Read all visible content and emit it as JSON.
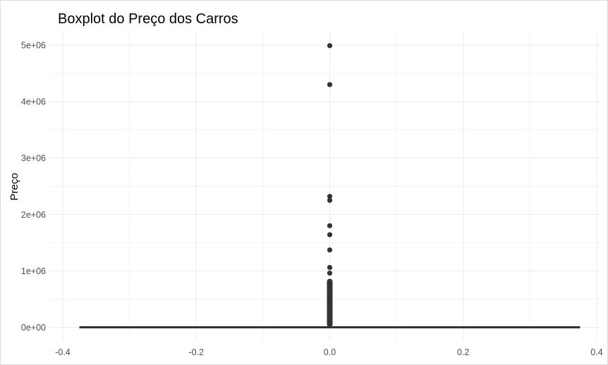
{
  "chart_data": {
    "type": "boxplot",
    "title": "Boxplot do Preço dos Carros",
    "xlabel": "",
    "ylabel": "Preço",
    "xlim": [
      -0.4,
      0.4
    ],
    "ylim": [
      0,
      5000000
    ],
    "x_ticks": [
      -0.4,
      -0.2,
      0.0,
      0.2,
      0.4
    ],
    "x_tick_labels": [
      "-0.4",
      "-0.2",
      "0.0",
      "0.2",
      "0.4"
    ],
    "y_ticks": [
      0,
      1000000,
      2000000,
      3000000,
      4000000,
      5000000
    ],
    "y_tick_labels": [
      "0e+00",
      "1e+06",
      "2e+06",
      "3e+06",
      "4e+06",
      "5e+06"
    ],
    "grid": true,
    "box": {
      "x": 0.0,
      "width": 0.75,
      "q1": 0,
      "median": 0,
      "q3": 0,
      "whisker_low": 0,
      "whisker_high": 0
    },
    "outliers_isolated": [
      4990000,
      4300000,
      2320000,
      2250000,
      1800000,
      1640000,
      1370000,
      1060000,
      960000
    ],
    "outliers_dense_range": [
      0,
      860000
    ],
    "colors": {
      "box": "#333333",
      "points": "#333333",
      "grid_major": "#ebebeb",
      "grid_minor": "#f4f4f4"
    }
  }
}
